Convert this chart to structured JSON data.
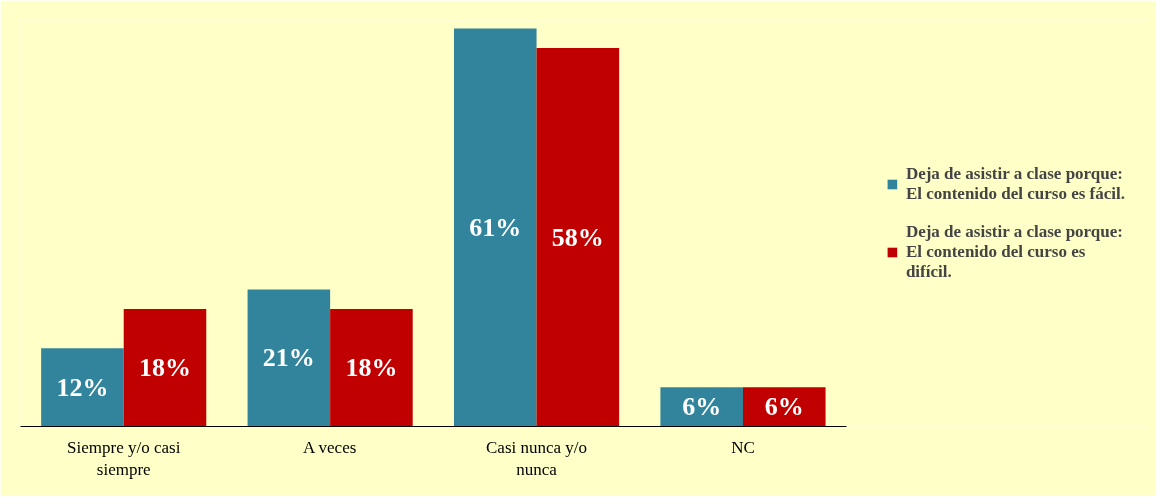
{
  "chart_data": {
    "type": "bar",
    "categories": [
      "Siempre y/o casi siempre",
      "A veces",
      "Casi nunca y/o nunca",
      "NC"
    ],
    "series": [
      {
        "name": "Deja de asistir a clase porque: El contenido del curso es fácil.",
        "color": "#31849b",
        "values": [
          12,
          21,
          61,
          6
        ],
        "value_labels": [
          "12%",
          "21%",
          "61%",
          "6%"
        ]
      },
      {
        "name": "Deja de asistir a clase porque: El contenido del curso es difícil.",
        "color": "#c00000",
        "values": [
          18,
          18,
          58,
          6
        ],
        "value_labels": [
          "18%",
          "18%",
          "58%",
          "6%"
        ]
      }
    ],
    "data_labels": true,
    "legend": "right",
    "grid": false
  }
}
